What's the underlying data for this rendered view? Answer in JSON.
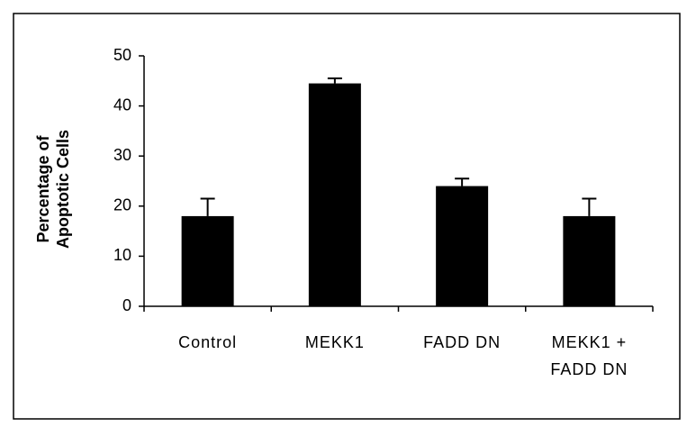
{
  "chart_data": {
    "type": "bar",
    "ylabel": [
      "Percentage of",
      "Apoptotic Cells"
    ],
    "categories": [
      "Control",
      "MEKK1",
      "FADD DN",
      "MEKK1 + FADD DN"
    ],
    "values": [
      18,
      44.5,
      24,
      18
    ],
    "errors": [
      3.5,
      1,
      1.5,
      3.5
    ],
    "color": "#000000",
    "ylim": [
      0,
      50
    ],
    "yticks": [
      0,
      10,
      20,
      30,
      40,
      50
    ],
    "grid": false
  }
}
